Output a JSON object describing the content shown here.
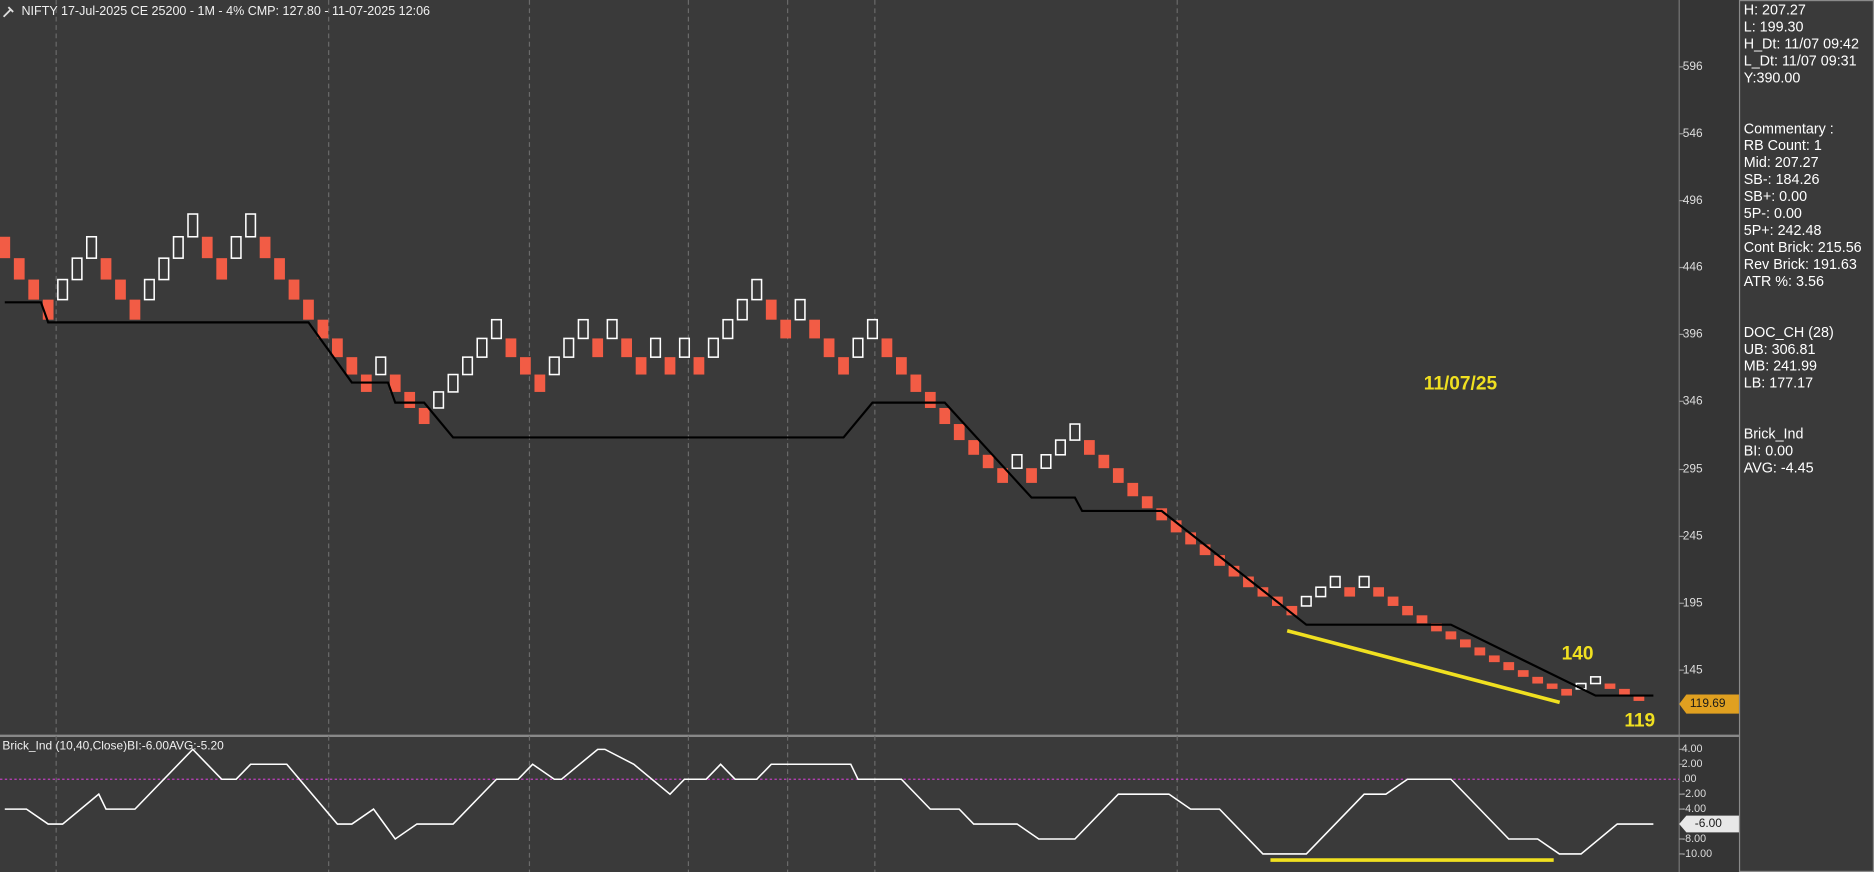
{
  "chart_data": [
    {
      "type": "renko",
      "title": "NIFTY 17-Jul-2025 CE 25200 - 1M - 4% CMP: 127.80 - 11-07-2025 12:06",
      "first_open": 469,
      "closes": [
        453,
        437,
        422,
        407,
        437,
        453,
        469,
        437,
        422,
        407,
        437,
        453,
        469,
        486,
        453,
        437,
        469,
        486,
        453,
        437,
        422,
        407,
        393,
        379,
        366,
        353,
        379,
        353,
        341,
        329,
        353,
        366,
        379,
        393,
        407,
        379,
        366,
        353,
        379,
        393,
        407,
        379,
        407,
        379,
        366,
        393,
        366,
        393,
        366,
        393,
        407,
        422,
        437,
        407,
        393,
        422,
        393,
        379,
        366,
        393,
        407,
        379,
        366,
        353,
        341,
        329,
        317,
        306,
        296,
        285,
        306,
        285,
        306,
        317,
        329,
        306,
        296,
        285,
        275,
        266,
        257,
        248,
        239,
        231,
        223,
        215,
        207,
        200,
        193,
        186,
        200,
        207,
        215,
        200,
        215,
        200,
        193,
        186,
        180,
        174,
        168,
        162,
        156,
        151,
        145,
        140,
        135,
        131,
        126,
        135,
        140,
        131,
        126,
        122
      ],
      "up_color": "#ffffff",
      "down_color": "#f25c45",
      "trail": {
        "x": [
          0,
          2.5,
          3,
          21,
          24,
          26.5,
          27,
          29,
          31,
          58,
          60,
          65,
          71,
          74,
          74.5,
          80,
          90,
          100,
          110,
          114
        ],
        "values": [
          420,
          420,
          405,
          405,
          360,
          360,
          345,
          345,
          319,
          319,
          345,
          345,
          274,
          274,
          264,
          264,
          179,
          179,
          126,
          126
        ],
        "color": "#000000"
      },
      "ylim": [
        96.8,
        646
      ],
      "yticks": [
        596,
        546,
        496,
        446,
        396,
        346,
        295,
        245,
        195,
        145
      ],
      "last_price": 119.69,
      "annotations": [
        "11/07/25",
        "140",
        "119"
      ],
      "info": [
        [
          "H: 207.27",
          "L: 199.30",
          "H_Dt: 11/07 09:42",
          "L_Dt: 11/07 09:31",
          "Y:390.00"
        ],
        [
          "Commentary :",
          "RB Count: 1",
          "Mid: 207.27",
          "SB-: 184.26",
          "SB+: 0.00",
          "5P-: 0.00",
          "5P+: 242.48",
          "Cont Brick: 215.56",
          "Rev Brick: 191.63",
          "ATR %: 3.56"
        ],
        [
          "DOC_CH (28)",
          "UB: 306.81",
          "MB: 241.99",
          "LB: 177.17"
        ],
        [
          "Brick_Ind",
          "BI: 0.00",
          "AVG: -4.45"
        ]
      ]
    },
    {
      "type": "line",
      "title": "Brick_Ind (10,40,Close)BI:-6.00AVG:-5.20",
      "x": [
        0,
        1.5,
        3,
        4,
        6.5,
        7,
        9,
        13,
        15,
        16,
        17,
        19.5,
        23,
        24,
        25.5,
        27,
        28.5,
        31,
        34,
        35.5,
        36.5,
        38,
        38.5,
        41,
        41.5,
        43.5,
        46,
        47,
        48.5,
        49.5,
        50.5,
        52,
        53,
        58.5,
        59,
        62,
        64,
        66,
        67,
        70,
        71.5,
        74,
        77,
        80.5,
        82,
        84,
        87,
        90,
        94,
        95.5,
        97,
        100,
        104,
        106,
        107.5,
        109,
        111.5,
        114
      ],
      "values": [
        -4,
        -4,
        -6,
        -6,
        -2,
        -4,
        -4,
        4,
        0,
        0,
        2,
        2,
        -6,
        -6,
        -4,
        -8,
        -6,
        -6,
        0,
        0,
        2,
        0,
        0,
        4,
        4,
        2,
        -2,
        0,
        0,
        2,
        0,
        0,
        2,
        2,
        0,
        0,
        -4,
        -4,
        -6,
        -6,
        -8,
        -8,
        -2,
        -2,
        -4,
        -4,
        -10,
        -10,
        -2,
        -2,
        0,
        0,
        -8,
        -8,
        -10,
        -10,
        -6,
        -6
      ],
      "color": "#ffffff",
      "ylim": [
        -12.1,
        5.65
      ],
      "yticks": [
        {
          "value": 4,
          "label": "4.00"
        },
        {
          "value": 2,
          "label": "2.00"
        },
        {
          "value": 0,
          "label": ".00"
        },
        {
          "value": -2,
          "label": "-2.00"
        },
        {
          "value": -4,
          "label": "-4.00"
        },
        {
          "value": -6,
          "label": "-6.00"
        },
        {
          "value": -8,
          "label": "-8.00"
        },
        {
          "value": -10,
          "label": "-10.00"
        }
      ],
      "zero_line_color": "#c040c0",
      "last_value": -6,
      "last_value_label": "-6.00"
    }
  ]
}
